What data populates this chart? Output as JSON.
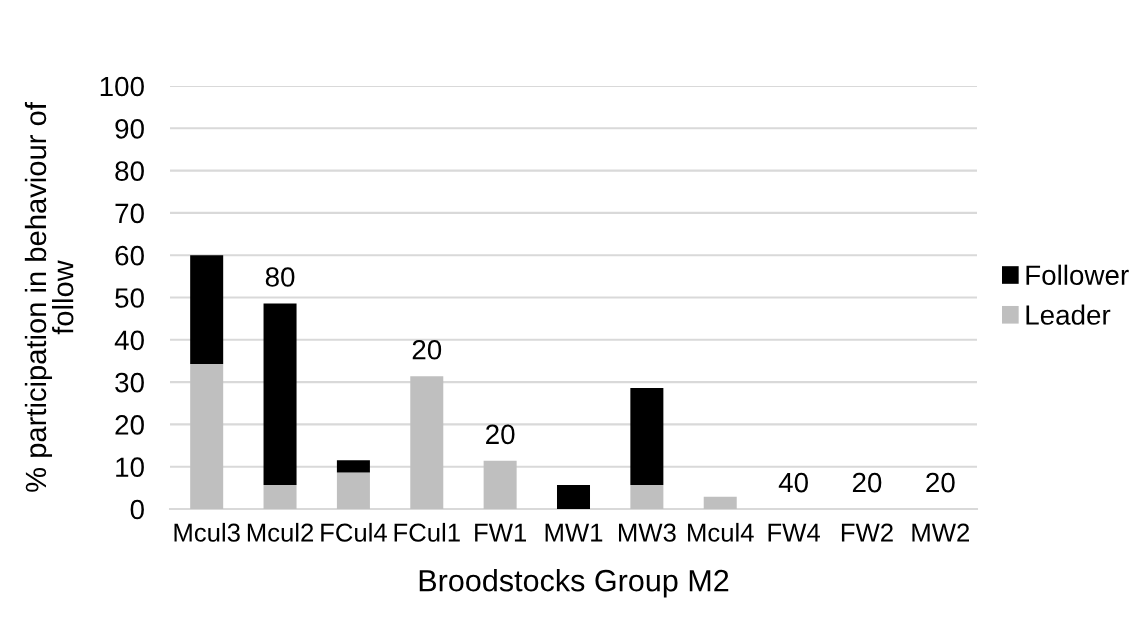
{
  "chart_data": {
    "type": "bar",
    "stacked": true,
    "xlabel": "Broodstocks Group M2",
    "ylabel": "% participation in behaviour of follow",
    "categories": [
      "Mcul3",
      "Mcul2",
      "FCul4",
      "FCul1",
      "FW1",
      "MW1",
      "MW3",
      "Mcul4",
      "FW4",
      "FW2",
      "MW2"
    ],
    "series": [
      {
        "name": "Leader",
        "color": "#bfbfbf",
        "values": [
          34.3,
          5.7,
          8.6,
          31.4,
          11.4,
          0,
          5.7,
          2.9,
          0,
          0,
          0
        ]
      },
      {
        "name": "Follower",
        "color": "#000000",
        "values": [
          25.7,
          42.9,
          2.9,
          0,
          0,
          5.7,
          22.9,
          0,
          0,
          0,
          0
        ]
      }
    ],
    "ylim": [
      0,
      100
    ],
    "yticks": [
      0,
      10,
      20,
      30,
      40,
      50,
      60,
      70,
      80,
      90,
      100
    ],
    "grid": "y",
    "legend": "right",
    "annotations": [
      {
        "text": "80",
        "x": "Mcul2",
        "y": 48.6
      },
      {
        "text": "20",
        "x": "FCul1",
        "y": 31.4
      },
      {
        "text": "20",
        "x": "FW1",
        "y": 11.4
      },
      {
        "text": "40",
        "x": "FW4",
        "y": 0
      },
      {
        "text": "20",
        "x": "FW2",
        "y": 0
      },
      {
        "text": "20",
        "x": "MW2",
        "y": 0
      }
    ]
  }
}
